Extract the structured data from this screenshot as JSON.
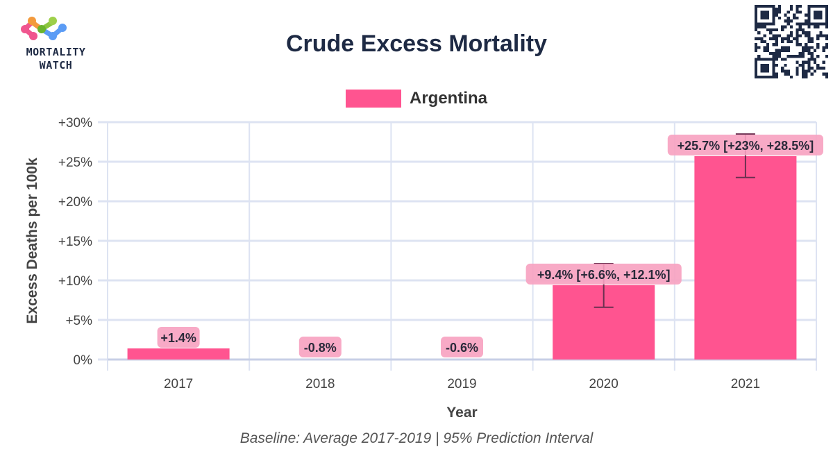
{
  "branding": {
    "logo_line1": "MORTALITY",
    "logo_line2": "WATCH",
    "qr_code": "qr-code-icon"
  },
  "colors": {
    "bar": "#ff5490",
    "label_bg": "#f7a1c0",
    "text_dark": "#1e2a44",
    "grid": "#dde3f2",
    "error_bar": "#6b3050"
  },
  "chart_data": {
    "type": "bar",
    "title": "Crude Excess Mortality",
    "subtitle": "Baseline: Average 2017-2019 | 95% Prediction Interval",
    "xlabel": "Year",
    "ylabel": "Excess Deaths per 100k",
    "ylim": [
      0,
      30
    ],
    "yticks": [
      0,
      5,
      10,
      15,
      20,
      25,
      30
    ],
    "ytick_labels": [
      "0%",
      "+5%",
      "+10%",
      "+15%",
      "+20%",
      "+25%",
      "+30%"
    ],
    "grid": true,
    "legend_position": "top-center",
    "categories": [
      "2017",
      "2018",
      "2019",
      "2020",
      "2021"
    ],
    "series": [
      {
        "name": "Argentina",
        "values": [
          1.4,
          -0.8,
          -0.6,
          9.4,
          25.7
        ],
        "lower": [
          null,
          null,
          null,
          6.6,
          23.0
        ],
        "upper": [
          null,
          null,
          null,
          12.1,
          28.5
        ],
        "labels": [
          "+1.4%",
          "-0.8%",
          "-0.6%",
          "+9.4% [+6.6%, +12.1%]",
          "+25.7% [+23%, +28.5%]"
        ]
      }
    ]
  }
}
